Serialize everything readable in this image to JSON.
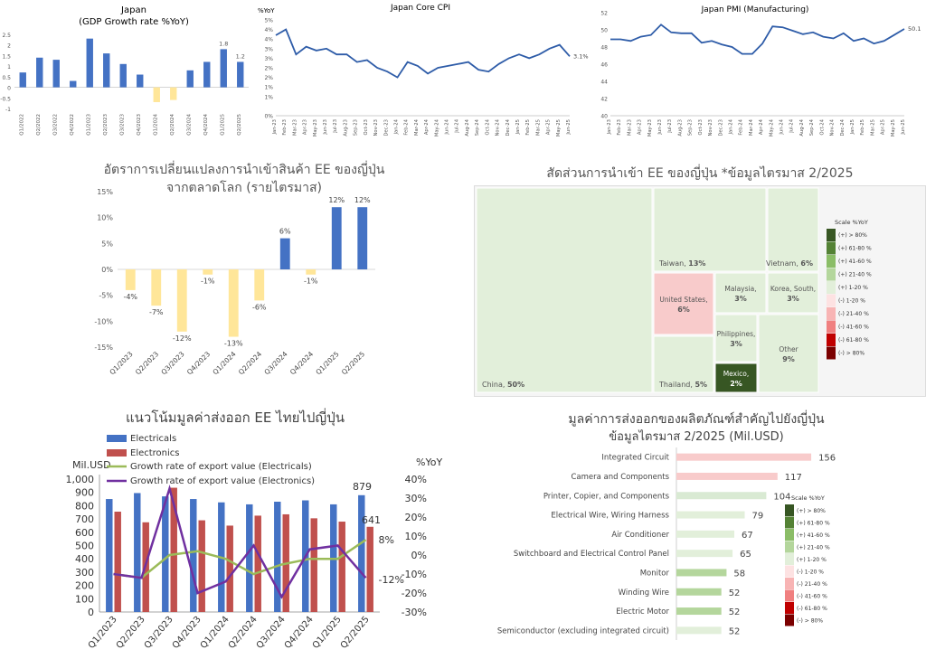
{
  "gdp": {
    "title": "Japan",
    "subtitle": "(GDP Growth rate %YoY)",
    "chart_data": {
      "type": "bar",
      "title": "Japan (GDP Growth rate %YoY)",
      "categories": [
        "Q1/2022",
        "Q2/2022",
        "Q3/2022",
        "Q4/2022",
        "Q1/2023",
        "Q2/2023",
        "Q3/2023",
        "Q4/2023",
        "Q1/2024",
        "Q2/2024",
        "Q3/2024",
        "Q4/2024",
        "Q1/2025",
        "Q2/2025"
      ],
      "values": [
        0.7,
        1.4,
        1.3,
        0.3,
        2.3,
        1.6,
        1.1,
        0.6,
        -0.7,
        -0.6,
        0.8,
        1.2,
        1.8,
        1.2
      ],
      "ylim": [
        -1,
        2.5
      ],
      "yticks": [
        "2.5",
        "2",
        "1.5",
        "1",
        "0.5",
        "0",
        "-0.5",
        "-1"
      ],
      "labels": [
        "1.8",
        "1.2"
      ],
      "colors": {
        "positive": "#4472c4",
        "negative": "#ffe699"
      }
    }
  },
  "cpi": {
    "title": "Japan Core CPI",
    "chart_data": {
      "type": "line",
      "title": "Japan Core CPI",
      "ylabel": "%YoY",
      "x": [
        "Jan-23",
        "Feb-23",
        "Mar-23",
        "Apr-23",
        "May-23",
        "Jun-23",
        "Jul-23",
        "Aug-23",
        "Sep-23",
        "Oct-23",
        "Nov-23",
        "Dec-23",
        "Jan-24",
        "Feb-24",
        "Mar-24",
        "Apr-24",
        "May-24",
        "Jun-24",
        "Jul-24",
        "Aug-24",
        "Sep-24",
        "Oct-24",
        "Nov-24",
        "Dec-24",
        "Jan-25",
        "Feb-25",
        "Mar-25",
        "Apr-25",
        "May-25",
        "Jun-25"
      ],
      "values": [
        4.2,
        4.5,
        3.2,
        3.6,
        3.4,
        3.5,
        3.2,
        3.2,
        2.8,
        2.9,
        2.5,
        2.3,
        2.0,
        2.8,
        2.6,
        2.2,
        2.5,
        2.6,
        2.7,
        2.8,
        2.4,
        2.3,
        2.7,
        3.0,
        3.2,
        3.0,
        3.2,
        3.5,
        3.7,
        3.1
      ],
      "ylim": [
        0,
        5
      ],
      "yticks": [
        "5%",
        "4%",
        "4%",
        "3%",
        "3%",
        "2%",
        "2%",
        "1%",
        "1%",
        "0%"
      ],
      "end_label": "3.1%",
      "color": "#2e5ca8"
    }
  },
  "pmi": {
    "title": "Japan PMI (Manufacturing)",
    "chart_data": {
      "type": "line",
      "title": "Japan PMI (Manufacturing)",
      "x": [
        "Jan-23",
        "Feb-23",
        "Mar-23",
        "Apr-23",
        "May-23",
        "Jun-23",
        "Jul-23",
        "Aug-23",
        "Sep-23",
        "Oct-23",
        "Nov-23",
        "Dec-23",
        "Jan-24",
        "Feb-24",
        "Mar-24",
        "Apr-24",
        "May-24",
        "Jun-24",
        "Jul-24",
        "Aug-24",
        "Sep-24",
        "Oct-24",
        "Nov-24",
        "Dec-24",
        "Jan-25",
        "Feb-25",
        "Mar-25",
        "Apr-25",
        "May-25",
        "Jun-25"
      ],
      "values": [
        48.9,
        48.9,
        48.7,
        49.2,
        49.4,
        50.6,
        49.7,
        49.6,
        49.6,
        48.5,
        48.7,
        48.3,
        48.0,
        47.2,
        47.2,
        48.4,
        50.4,
        50.3,
        49.9,
        49.5,
        49.7,
        49.2,
        49.0,
        49.6,
        48.7,
        49.0,
        48.4,
        48.7,
        49.4,
        50.1
      ],
      "ylim": [
        40,
        52
      ],
      "yticks": [
        "52",
        "50",
        "48",
        "46",
        "44",
        "42",
        "40"
      ],
      "end_label": "50.1",
      "color": "#2e5ca8"
    }
  },
  "import_rate": {
    "title_line1": "อัตราการเปลี่ยนแปลงการนำเข้าสินค้า  EE  ของญี่ปุ่น",
    "title_line2": "จากตลาดโลก  (รายไตรมาส)",
    "chart_data": {
      "type": "bar",
      "categories": [
        "Q1/2023",
        "Q2/2023",
        "Q3/2023",
        "Q4/2023",
        "Q1/2024",
        "Q2/2024",
        "Q3/2024",
        "Q4/2024",
        "Q1/2025",
        "Q2/2025"
      ],
      "values": [
        -4,
        -7,
        -12,
        -1,
        -13,
        -6,
        6,
        -1,
        12,
        12
      ],
      "labels": [
        "-4%",
        "-7%",
        "-12%",
        "-1%",
        "-13%",
        "-6%",
        "6%",
        "-1%",
        "12%",
        "12%"
      ],
      "ylim": [
        -15,
        15
      ],
      "yticks": [
        "15%",
        "10%",
        "5%",
        "0%",
        "-5%",
        "-10%",
        "-15%"
      ],
      "colors": {
        "positive": "#4472c4",
        "negative": "#ffe699"
      }
    }
  },
  "treemap": {
    "title": "สัดส่วนการนำเข้า  EE  ของญี่ปุ่น  *ข้อมูลไตรมาส  2/2025",
    "chart_data": {
      "type": "treemap",
      "items": [
        {
          "name": "China,",
          "value": "50%",
          "color": "#e2efda"
        },
        {
          "name": "Taiwan,",
          "value": "13%",
          "color": "#e2efda"
        },
        {
          "name": "Vietnam,",
          "value": "6%",
          "color": "#e2efda"
        },
        {
          "name": "United States,",
          "value": "6%",
          "color": "#f8cbcb"
        },
        {
          "name": "Malaysia,",
          "value": "3%",
          "color": "#e2efda"
        },
        {
          "name": "Korea, South,",
          "value": "3%",
          "color": "#e2efda"
        },
        {
          "name": "Philippines,",
          "value": "3%",
          "color": "#e2efda"
        },
        {
          "name": "Other",
          "value": "9%",
          "color": "#e2efda"
        },
        {
          "name": "Thailand,",
          "value": "5%",
          "color": "#e2efda"
        },
        {
          "name": "Mexico,",
          "value": "2%",
          "color": "#375623"
        }
      ]
    },
    "legend": {
      "title": "Scale %YoY",
      "items": [
        {
          "label": "(+) > 80%",
          "color": "#375623"
        },
        {
          "label": "(+) 61-80 %",
          "color": "#548235"
        },
        {
          "label": "(+) 41-60 %",
          "color": "#8bbd67"
        },
        {
          "label": "(+) 21-40 %",
          "color": "#b4d69c"
        },
        {
          "label": "(+) 1-20 %",
          "color": "#e2efda"
        },
        {
          "label": "(-) 1-20 %",
          "color": "#fde2e2"
        },
        {
          "label": "(-) 21-40 %",
          "color": "#f8b4b4"
        },
        {
          "label": "(-) 41-60 %",
          "color": "#f08080"
        },
        {
          "label": "(-) 61-80 %",
          "color": "#c00000"
        },
        {
          "label": "(-) > 80%",
          "color": "#7b0000"
        }
      ]
    }
  },
  "export_trend": {
    "title": "แนวโน้มมูลค่าส่งออก  EE  ไทยไปญี่ปุ่น",
    "ylabel_left": "Mil.USD",
    "ylabel_right": "%YoY",
    "chart_data": {
      "type": "bar",
      "categories": [
        "Q1/2023",
        "Q2/2023",
        "Q3/2023",
        "Q4/2023",
        "Q1/2024",
        "Q2/2024",
        "Q3/2024",
        "Q4/2024",
        "Q1/2025",
        "Q2/2025"
      ],
      "series": [
        {
          "name": "Electricals",
          "values": [
            850,
            895,
            870,
            850,
            825,
            810,
            830,
            840,
            810,
            879
          ],
          "color": "#4472c4"
        },
        {
          "name": "Electronics",
          "values": [
            755,
            675,
            935,
            690,
            650,
            725,
            735,
            705,
            680,
            641
          ],
          "color": "#c0504d"
        },
        {
          "name": "Growth rate of export value (Electricals)",
          "values": [
            -10,
            -12,
            0,
            2,
            -2,
            -10,
            -5,
            -2,
            -2,
            8
          ],
          "color": "#9bbb59"
        },
        {
          "name": "Growth rate of export value (Electronics)",
          "values": [
            -10,
            -12,
            35,
            -20,
            -14,
            5,
            -22,
            3,
            5,
            -12
          ],
          "color": "#7030a0"
        }
      ],
      "ylim": [
        0,
        1000
      ],
      "yticks": [
        "1,000",
        "900",
        "800",
        "700",
        "600",
        "500",
        "400",
        "300",
        "200",
        "100",
        "0"
      ],
      "y2lim": [
        -30,
        40
      ],
      "y2ticks": [
        "40%",
        "30%",
        "20%",
        "10%",
        "0%",
        "-10%",
        "-20%",
        "-30%"
      ],
      "labels": {
        "bar_last_electricals": "879",
        "bar_last_electronics": "641",
        "line_last_electricals": "8%",
        "line_last_electronics": "-12%"
      }
    }
  },
  "products": {
    "title_line1": "มูลค่าการส่งออกของผลิตภัณฑ์สำคัญไปยังญี่ปุ่น",
    "title_line2": "ข้อมูลไตรมาส  2/2025  (Mil.USD)",
    "chart_data": {
      "type": "bar",
      "orientation": "horizontal",
      "categories": [
        "Integrated Circuit",
        "Camera and Components",
        "Printer, Copier, and Components",
        "Electrical Wire, Wiring Harness",
        "Air Conditioner",
        "Switchboard and Electrical Control Panel",
        "Monitor",
        "Winding Wire",
        "Electric Motor",
        "Semiconductor (excluding integrated circuit)"
      ],
      "values": [
        156,
        117,
        104,
        79,
        67,
        65,
        58,
        52,
        52,
        52
      ],
      "colors": [
        "#f8cbcb",
        "#f8cbcb",
        "#d9ead3",
        "#e2efda",
        "#e2efda",
        "#e2efda",
        "#b4d69c",
        "#b4d69c",
        "#b4d69c",
        "#e2efda"
      ],
      "xlim": [
        0,
        180
      ]
    },
    "legend": {
      "title": "Scale %YoY",
      "items": [
        {
          "label": "(+) > 80%",
          "color": "#375623"
        },
        {
          "label": "(+) 61-80 %",
          "color": "#548235"
        },
        {
          "label": "(+) 41-60 %",
          "color": "#8bbd67"
        },
        {
          "label": "(+) 21-40 %",
          "color": "#b4d69c"
        },
        {
          "label": "(+) 1-20 %",
          "color": "#e2efda"
        },
        {
          "label": "(-) 1-20 %",
          "color": "#fde2e2"
        },
        {
          "label": "(-) 21-40 %",
          "color": "#f8b4b4"
        },
        {
          "label": "(-) 41-60 %",
          "color": "#f08080"
        },
        {
          "label": "(-) 61-80 %",
          "color": "#c00000"
        },
        {
          "label": "(-) > 80%",
          "color": "#7b0000"
        }
      ]
    }
  }
}
